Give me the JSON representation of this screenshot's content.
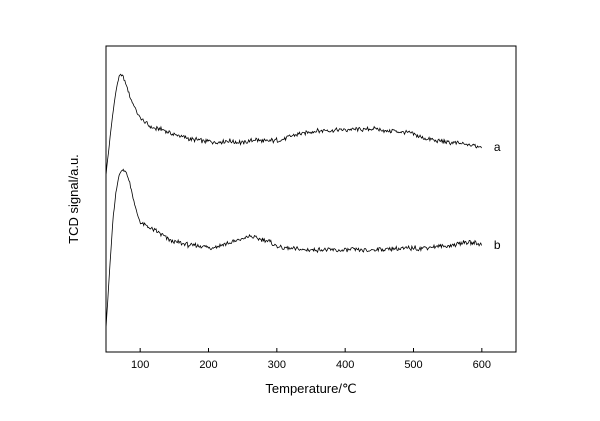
{
  "chart_data": {
    "type": "line",
    "title": "",
    "xlabel": "Temperature/℃",
    "ylabel": "TCD signal/a.u.",
    "xlim": [
      50,
      650
    ],
    "xticks": [
      100,
      200,
      300,
      400,
      500,
      600
    ],
    "xtick_labels": [
      "100",
      "200",
      "300",
      "400",
      "500",
      "600"
    ],
    "ylim": [
      0,
      1
    ],
    "yticks_shown": false,
    "grid": false,
    "legend": "none",
    "series": [
      {
        "name": "a",
        "color": "#000000",
        "x": [
          50,
          60,
          65,
          70,
          75,
          80,
          85,
          90,
          95,
          100,
          110,
          120,
          130,
          140,
          150,
          160,
          170,
          180,
          190,
          200,
          210,
          220,
          230,
          240,
          250,
          260,
          270,
          280,
          290,
          300,
          310,
          320,
          330,
          340,
          350,
          360,
          370,
          380,
          390,
          400,
          410,
          420,
          430,
          440,
          450,
          460,
          470,
          480,
          490,
          500,
          510,
          520,
          530,
          540,
          550,
          560,
          570,
          580,
          590,
          600
        ],
        "y": [
          0.58,
          0.78,
          0.86,
          0.908,
          0.9,
          0.87,
          0.835,
          0.81,
          0.785,
          0.765,
          0.745,
          0.73,
          0.728,
          0.72,
          0.71,
          0.705,
          0.697,
          0.694,
          0.69,
          0.688,
          0.686,
          0.688,
          0.69,
          0.686,
          0.684,
          0.69,
          0.694,
          0.688,
          0.69,
          0.692,
          0.697,
          0.705,
          0.712,
          0.715,
          0.72,
          0.722,
          0.724,
          0.723,
          0.726,
          0.725,
          0.728,
          0.727,
          0.726,
          0.73,
          0.728,
          0.722,
          0.723,
          0.72,
          0.718,
          0.712,
          0.703,
          0.696,
          0.692,
          0.69,
          0.684,
          0.683,
          0.68,
          0.676,
          0.674,
          0.67
        ]
      },
      {
        "name": "b",
        "color": "#000000",
        "x": [
          50,
          60,
          65,
          70,
          75,
          80,
          85,
          90,
          95,
          100,
          110,
          120,
          130,
          140,
          150,
          160,
          170,
          180,
          190,
          200,
          210,
          220,
          230,
          240,
          250,
          260,
          270,
          280,
          290,
          300,
          310,
          320,
          330,
          340,
          350,
          360,
          370,
          380,
          390,
          400,
          410,
          420,
          430,
          440,
          450,
          460,
          470,
          480,
          490,
          500,
          510,
          520,
          530,
          540,
          550,
          560,
          570,
          580,
          590,
          600
        ],
        "y": [
          0.08,
          0.43,
          0.53,
          0.585,
          0.597,
          0.585,
          0.55,
          0.5,
          0.455,
          0.425,
          0.41,
          0.4,
          0.385,
          0.37,
          0.36,
          0.355,
          0.35,
          0.348,
          0.346,
          0.34,
          0.345,
          0.35,
          0.356,
          0.362,
          0.37,
          0.378,
          0.372,
          0.367,
          0.36,
          0.345,
          0.34,
          0.338,
          0.336,
          0.334,
          0.333,
          0.334,
          0.335,
          0.333,
          0.332,
          0.332,
          0.335,
          0.333,
          0.331,
          0.334,
          0.337,
          0.335,
          0.337,
          0.336,
          0.338,
          0.34,
          0.339,
          0.342,
          0.344,
          0.345,
          0.346,
          0.35,
          0.356,
          0.358,
          0.356,
          0.35
        ]
      }
    ]
  }
}
